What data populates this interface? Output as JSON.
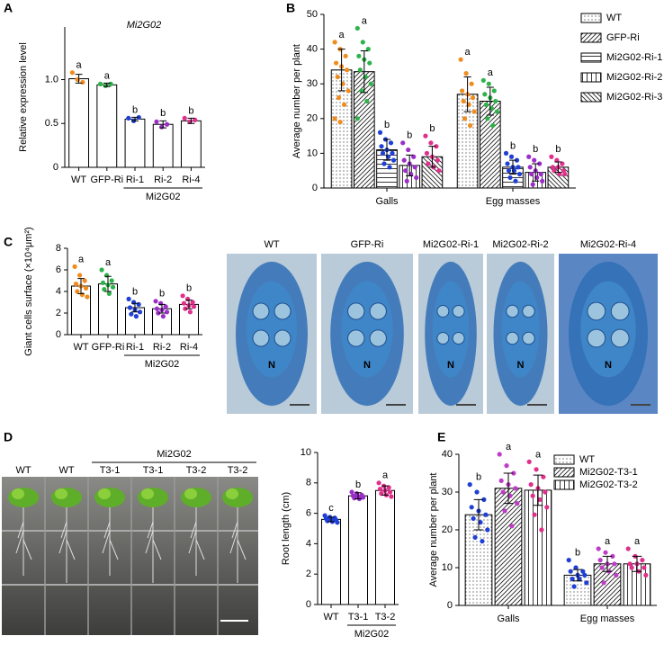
{
  "panels": [
    "A",
    "B",
    "C",
    "D",
    "E"
  ],
  "chart_data": [
    {
      "type": "bar",
      "title": "Mi2G02",
      "ylabel": "Relative expression level",
      "categories": [
        "WT",
        "GFP-Ri",
        "Ri-1",
        "Ri-2",
        "Ri-4"
      ],
      "group_label": "Mi2G02",
      "values": [
        1.01,
        0.94,
        0.55,
        0.49,
        0.53
      ],
      "errors": [
        0.05,
        0.02,
        0.02,
        0.04,
        0.03
      ],
      "letters": [
        "a",
        "a",
        "b",
        "b",
        "b"
      ],
      "point_colors": [
        "#f08c1e",
        "#2eb34a",
        "#1f3fd6",
        "#9b2ec9",
        "#e0308c"
      ],
      "points": [
        [
          1.08,
          1.0,
          0.97
        ],
        [
          0.95,
          0.93,
          0.95
        ],
        [
          0.56,
          0.53,
          0.57
        ],
        [
          0.52,
          0.46,
          0.49
        ],
        [
          0.56,
          0.52,
          0.54
        ]
      ],
      "ylim": [
        0,
        1.6
      ],
      "yticks": [
        0,
        0.5,
        {
          "value": 1,
          "label": "1.0"
        }
      ]
    },
    {
      "type": "grouped_bar",
      "ylabel": "Average number per plant",
      "categories": [
        "Galls",
        "Egg masses"
      ],
      "ylim": [
        0,
        50
      ],
      "yticks": [
        0,
        10,
        20,
        30,
        40,
        50
      ],
      "legend": "right",
      "series": [
        {
          "name": "WT",
          "hatch": "dots",
          "point_color": "#f08c1e",
          "values": [
            34,
            27
          ],
          "errors": [
            6,
            5
          ],
          "letters": [
            "a",
            "a"
          ],
          "points": [
            [
              42,
              40,
              38,
              36,
              35,
              34,
              32,
              30,
              28,
              26,
              24,
              20,
              19
            ],
            [
              37,
              33,
              30,
              28,
              27,
              26,
              25,
              24,
              22,
              20,
              18
            ]
          ]
        },
        {
          "name": "GFP-Ri",
          "hatch": "diagonal",
          "point_color": "#2eb34a",
          "values": [
            33.5,
            25
          ],
          "errors": [
            6,
            4
          ],
          "letters": [
            "a",
            "a"
          ],
          "points": [
            [
              46,
              42,
              40,
              38,
              37,
              36,
              34,
              32,
              30,
              28,
              25,
              20
            ],
            [
              31,
              30,
              28,
              27,
              26,
              25,
              24,
              23,
              22,
              20,
              18
            ]
          ]
        },
        {
          "name": "Mi2G02-Ri-1",
          "hatch": "horizontal",
          "point_color": "#1f3fd6",
          "values": [
            11,
            6
          ],
          "errors": [
            3,
            2
          ],
          "letters": [
            "b",
            "b"
          ],
          "points": [
            [
              16,
              14,
              13,
              12,
              11,
              10,
              10,
              9,
              8,
              7,
              6
            ],
            [
              10,
              9,
              8,
              7,
              6,
              6,
              5,
              5,
              4,
              3,
              2
            ]
          ]
        },
        {
          "name": "Mi2G02-Ri-2",
          "hatch": "vertical",
          "point_color": "#9b2ec9",
          "values": [
            6.5,
            4.5
          ],
          "errors": [
            3,
            2.5
          ],
          "letters": [
            "b",
            "b"
          ],
          "points": [
            [
              13,
              11,
              9,
              8,
              7,
              6,
              5,
              4,
              3,
              2
            ],
            [
              9,
              8,
              7,
              6,
              5,
              4,
              4,
              3,
              2,
              1
            ]
          ]
        },
        {
          "name": "Mi2G02-Ri-3",
          "hatch": "backdiagonal",
          "point_color": "#e0308c",
          "values": [
            9,
            6
          ],
          "errors": [
            3,
            1.5
          ],
          "letters": [
            "b",
            "b"
          ],
          "points": [
            [
              15,
              13,
              12,
              10,
              9,
              8,
              7,
              6,
              5
            ],
            [
              9,
              8,
              7,
              6,
              6,
              5,
              5,
              4,
              4
            ]
          ]
        }
      ]
    },
    {
      "type": "bar",
      "ylabel": "Giant cells surface (×10⁴μm²)",
      "categories": [
        "WT",
        "GFP-Ri",
        "Ri-1",
        "Ri-2",
        "Ri-4"
      ],
      "group_label": "Mi2G02",
      "values": [
        4.5,
        4.7,
        2.5,
        2.4,
        2.8
      ],
      "errors": [
        0.7,
        0.7,
        0.4,
        0.4,
        0.4
      ],
      "letters": [
        "a",
        "a",
        "b",
        "b",
        "b"
      ],
      "point_colors": [
        "#f08c1e",
        "#2eb34a",
        "#1f3fd6",
        "#9b2ec9",
        "#e0308c"
      ],
      "points": [
        [
          6.3,
          5.5,
          5,
          4.7,
          4.5,
          4.3,
          4,
          3.7,
          3.5
        ],
        [
          6,
          5.5,
          5,
          4.8,
          4.6,
          4.4,
          4.2,
          3.8
        ],
        [
          3.3,
          3,
          2.8,
          2.5,
          2.3,
          2.1,
          1.9,
          1.7
        ],
        [
          3.1,
          2.9,
          2.6,
          2.4,
          2.3,
          2.1,
          2,
          1.7
        ],
        [
          3.6,
          3.3,
          3,
          2.9,
          2.7,
          2.6,
          2.4,
          2.1
        ]
      ],
      "ylim": [
        0,
        8
      ],
      "yticks": [
        0,
        2,
        4,
        6,
        8
      ]
    },
    {
      "type": "bar",
      "ylabel": "Root length (cm)",
      "categories": [
        "WT",
        "T3-1",
        "T3-2"
      ],
      "group_label": "Mi2G02",
      "values": [
        5.6,
        7.15,
        7.5
      ],
      "errors": [
        0.15,
        0.2,
        0.3
      ],
      "letters": [
        "c",
        "b",
        "a"
      ],
      "point_colors": [
        "#1f3fd6",
        "#9b2ec9",
        "#e0308c"
      ],
      "points": [
        [
          5.85,
          5.75,
          5.7,
          5.65,
          5.6,
          5.55,
          5.5,
          5.45,
          5.4
        ],
        [
          7.4,
          7.3,
          7.2,
          7.15,
          7.1,
          7.05,
          7,
          6.95
        ],
        [
          8,
          7.8,
          7.7,
          7.6,
          7.5,
          7.4,
          7.3,
          7.2,
          7.1
        ]
      ],
      "ylim": [
        0,
        10
      ],
      "yticks": [
        0,
        2,
        4,
        6,
        8,
        10
      ]
    },
    {
      "type": "grouped_bar",
      "ylabel": "Average number per plant",
      "categories": [
        "Galls",
        "Egg masses"
      ],
      "ylim": [
        0,
        40
      ],
      "yticks": [
        0,
        10,
        20,
        30,
        40
      ],
      "legend": "top-right",
      "series": [
        {
          "name": "WT",
          "hatch": "dots",
          "point_color": "#1f3fd6",
          "values": [
            24,
            8
          ],
          "errors": [
            4,
            1.5
          ],
          "letters": [
            "b",
            "b"
          ],
          "points": [
            [
              32,
              30,
              28,
              26,
              25,
              24,
              23,
              22,
              20,
              18,
              17
            ],
            [
              12,
              10,
              9,
              9,
              8,
              8,
              7,
              7,
              6,
              5
            ]
          ]
        },
        {
          "name": "Mi2G02-T3-1",
          "hatch": "diagonal",
          "point_color": "#c03cc8",
          "values": [
            31,
            11
          ],
          "errors": [
            4,
            2
          ],
          "letters": [
            "a",
            "a"
          ],
          "points": [
            [
              40,
              37,
              35,
              33,
              32,
              31,
              30,
              29,
              27,
              25,
              21
            ],
            [
              15,
              14,
              13,
              12,
              11,
              11,
              10,
              9,
              8,
              6
            ]
          ]
        },
        {
          "name": "Mi2G02-T3-2",
          "hatch": "vertical",
          "point_color": "#e0308c",
          "values": [
            30.5,
            11
          ],
          "errors": [
            4,
            2
          ],
          "letters": [
            "a",
            "a"
          ],
          "points": [
            [
              38,
              36,
              34,
              32,
              31,
              30,
              29,
              28,
              26,
              24,
              20
            ],
            [
              15,
              13,
              12,
              11,
              11,
              10,
              10,
              9,
              8
            ]
          ]
        }
      ]
    }
  ],
  "micrographs": [
    {
      "label": "WT",
      "mark": "N"
    },
    {
      "label": "GFP-Ri",
      "mark": "N"
    },
    {
      "label": "Mi2G02-Ri-1",
      "mark": "N"
    },
    {
      "label": "Mi2G02-Ri-2",
      "mark": "N"
    },
    {
      "label": "Mi2G02-Ri-4",
      "mark": "N"
    }
  ],
  "photo": {
    "group": "Mi2G02",
    "labels": [
      "WT",
      "WT",
      "T3-1",
      "T3-1",
      "T3-2",
      "T3-2"
    ]
  }
}
